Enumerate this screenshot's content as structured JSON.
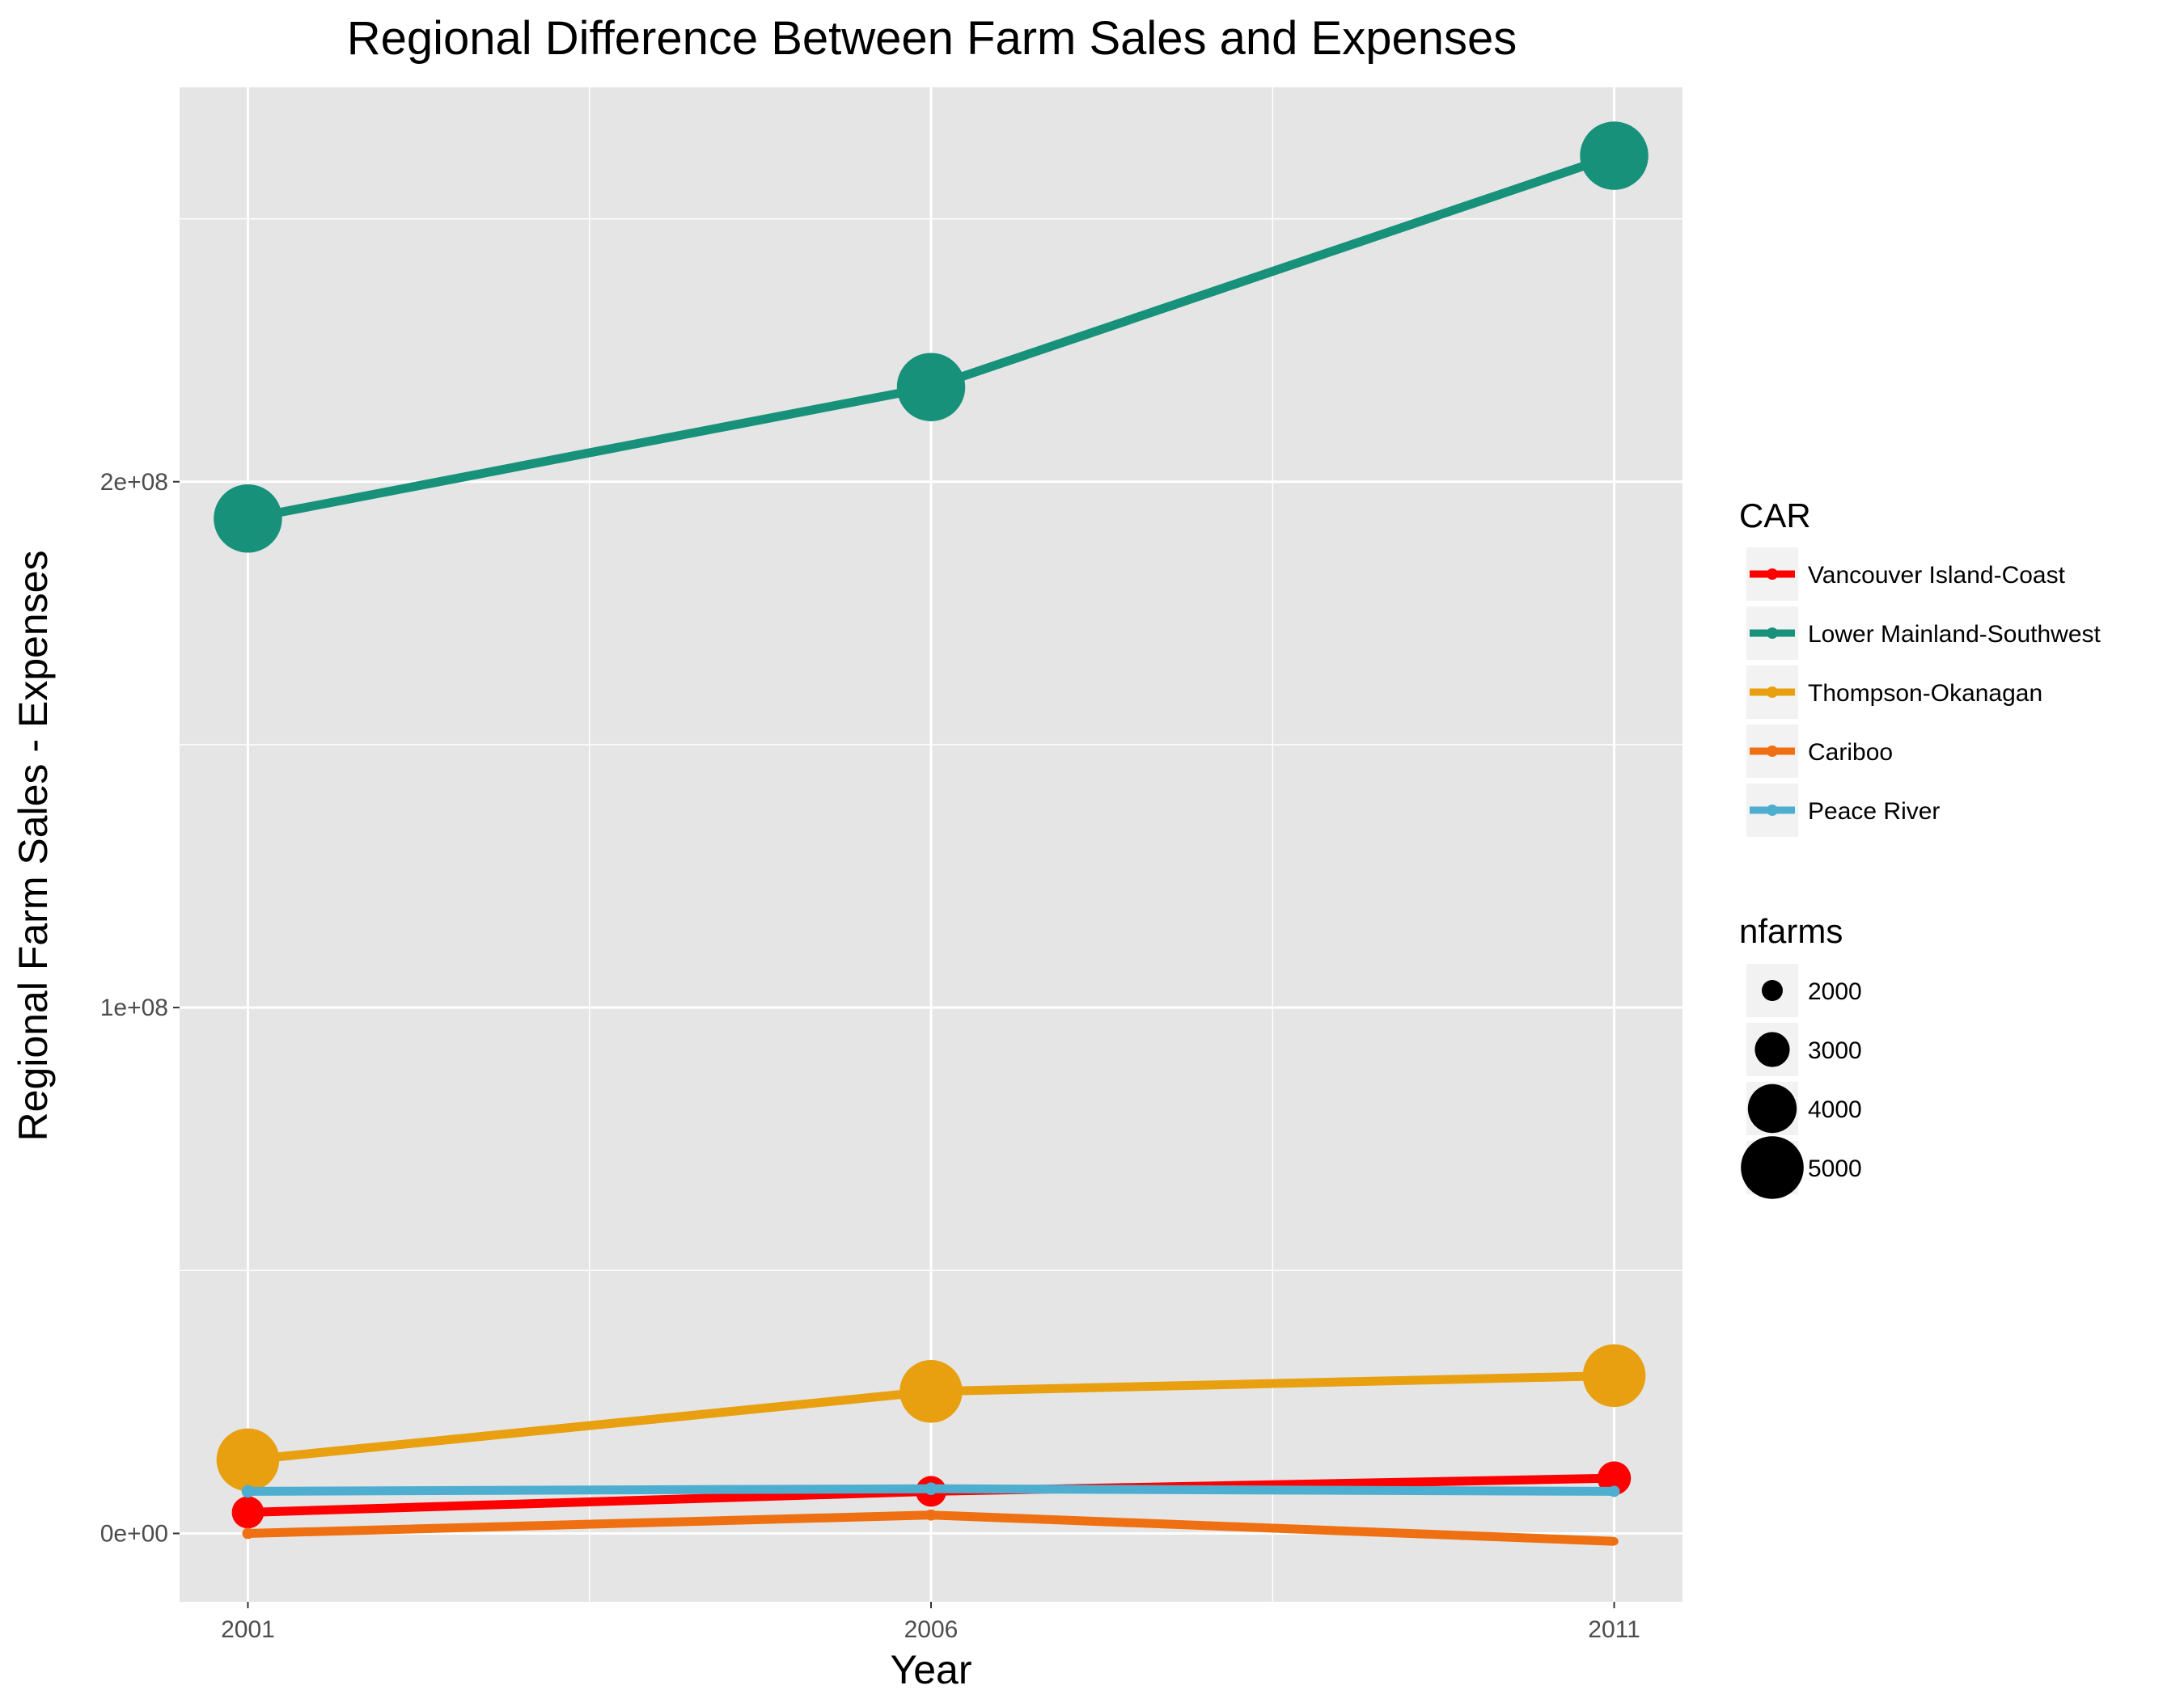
{
  "chart_data": {
    "type": "line",
    "title": "Regional Difference Between Farm Sales and Expenses",
    "xlabel": "Year",
    "ylabel": "Regional Farm Sales - Expenses",
    "x": [
      2001,
      2006,
      2011
    ],
    "x_ticks": [
      "2001",
      "2006",
      "2011"
    ],
    "xlim": [
      2000.5,
      2011.5
    ],
    "y_ticks": [
      {
        "value": 0,
        "label": "0e+00"
      },
      {
        "value": 100000000,
        "label": "1e+08"
      },
      {
        "value": 200000000,
        "label": "2e+08"
      }
    ],
    "ylim": [
      -13000000,
      275000000
    ],
    "grid": true,
    "legend_position": "right",
    "series": [
      {
        "name": "Vancouver Island-Coast",
        "color": "#ff0000",
        "values": [
          4000000,
          8000000,
          10500000
        ],
        "nfarms": [
          2800,
          2700,
          2900
        ]
      },
      {
        "name": "Lower Mainland-Southwest",
        "color": "#17917a",
        "values": [
          193000000,
          218000000,
          262000000
        ],
        "nfarms": [
          5400,
          5400,
          5400
        ]
      },
      {
        "name": "Thompson-Okanagan",
        "color": "#e8a010",
        "values": [
          14000000,
          27000000,
          30000000
        ],
        "nfarms": [
          5000,
          5000,
          5000
        ]
      },
      {
        "name": "Cariboo",
        "color": "#ef7012",
        "values": [
          0,
          3500000,
          -1500000
        ],
        "nfarms": [
          1300,
          1300,
          1100
        ]
      },
      {
        "name": "Peace River",
        "color": "#4eaed0",
        "values": [
          8000000,
          8500000,
          8000000
        ],
        "nfarms": [
          1400,
          1400,
          1300
        ]
      }
    ],
    "size_legend": {
      "title": "nfarms",
      "entries": [
        {
          "label": "2000",
          "value": 2000
        },
        {
          "label": "3000",
          "value": 3000
        },
        {
          "label": "4000",
          "value": 4000
        },
        {
          "label": "5000",
          "value": 5000
        }
      ]
    },
    "legend_title": "CAR",
    "colors": {
      "panel": "#e5e5e5",
      "grid": "#ffffff",
      "legend_key_bg": "#f2f2f2"
    }
  }
}
